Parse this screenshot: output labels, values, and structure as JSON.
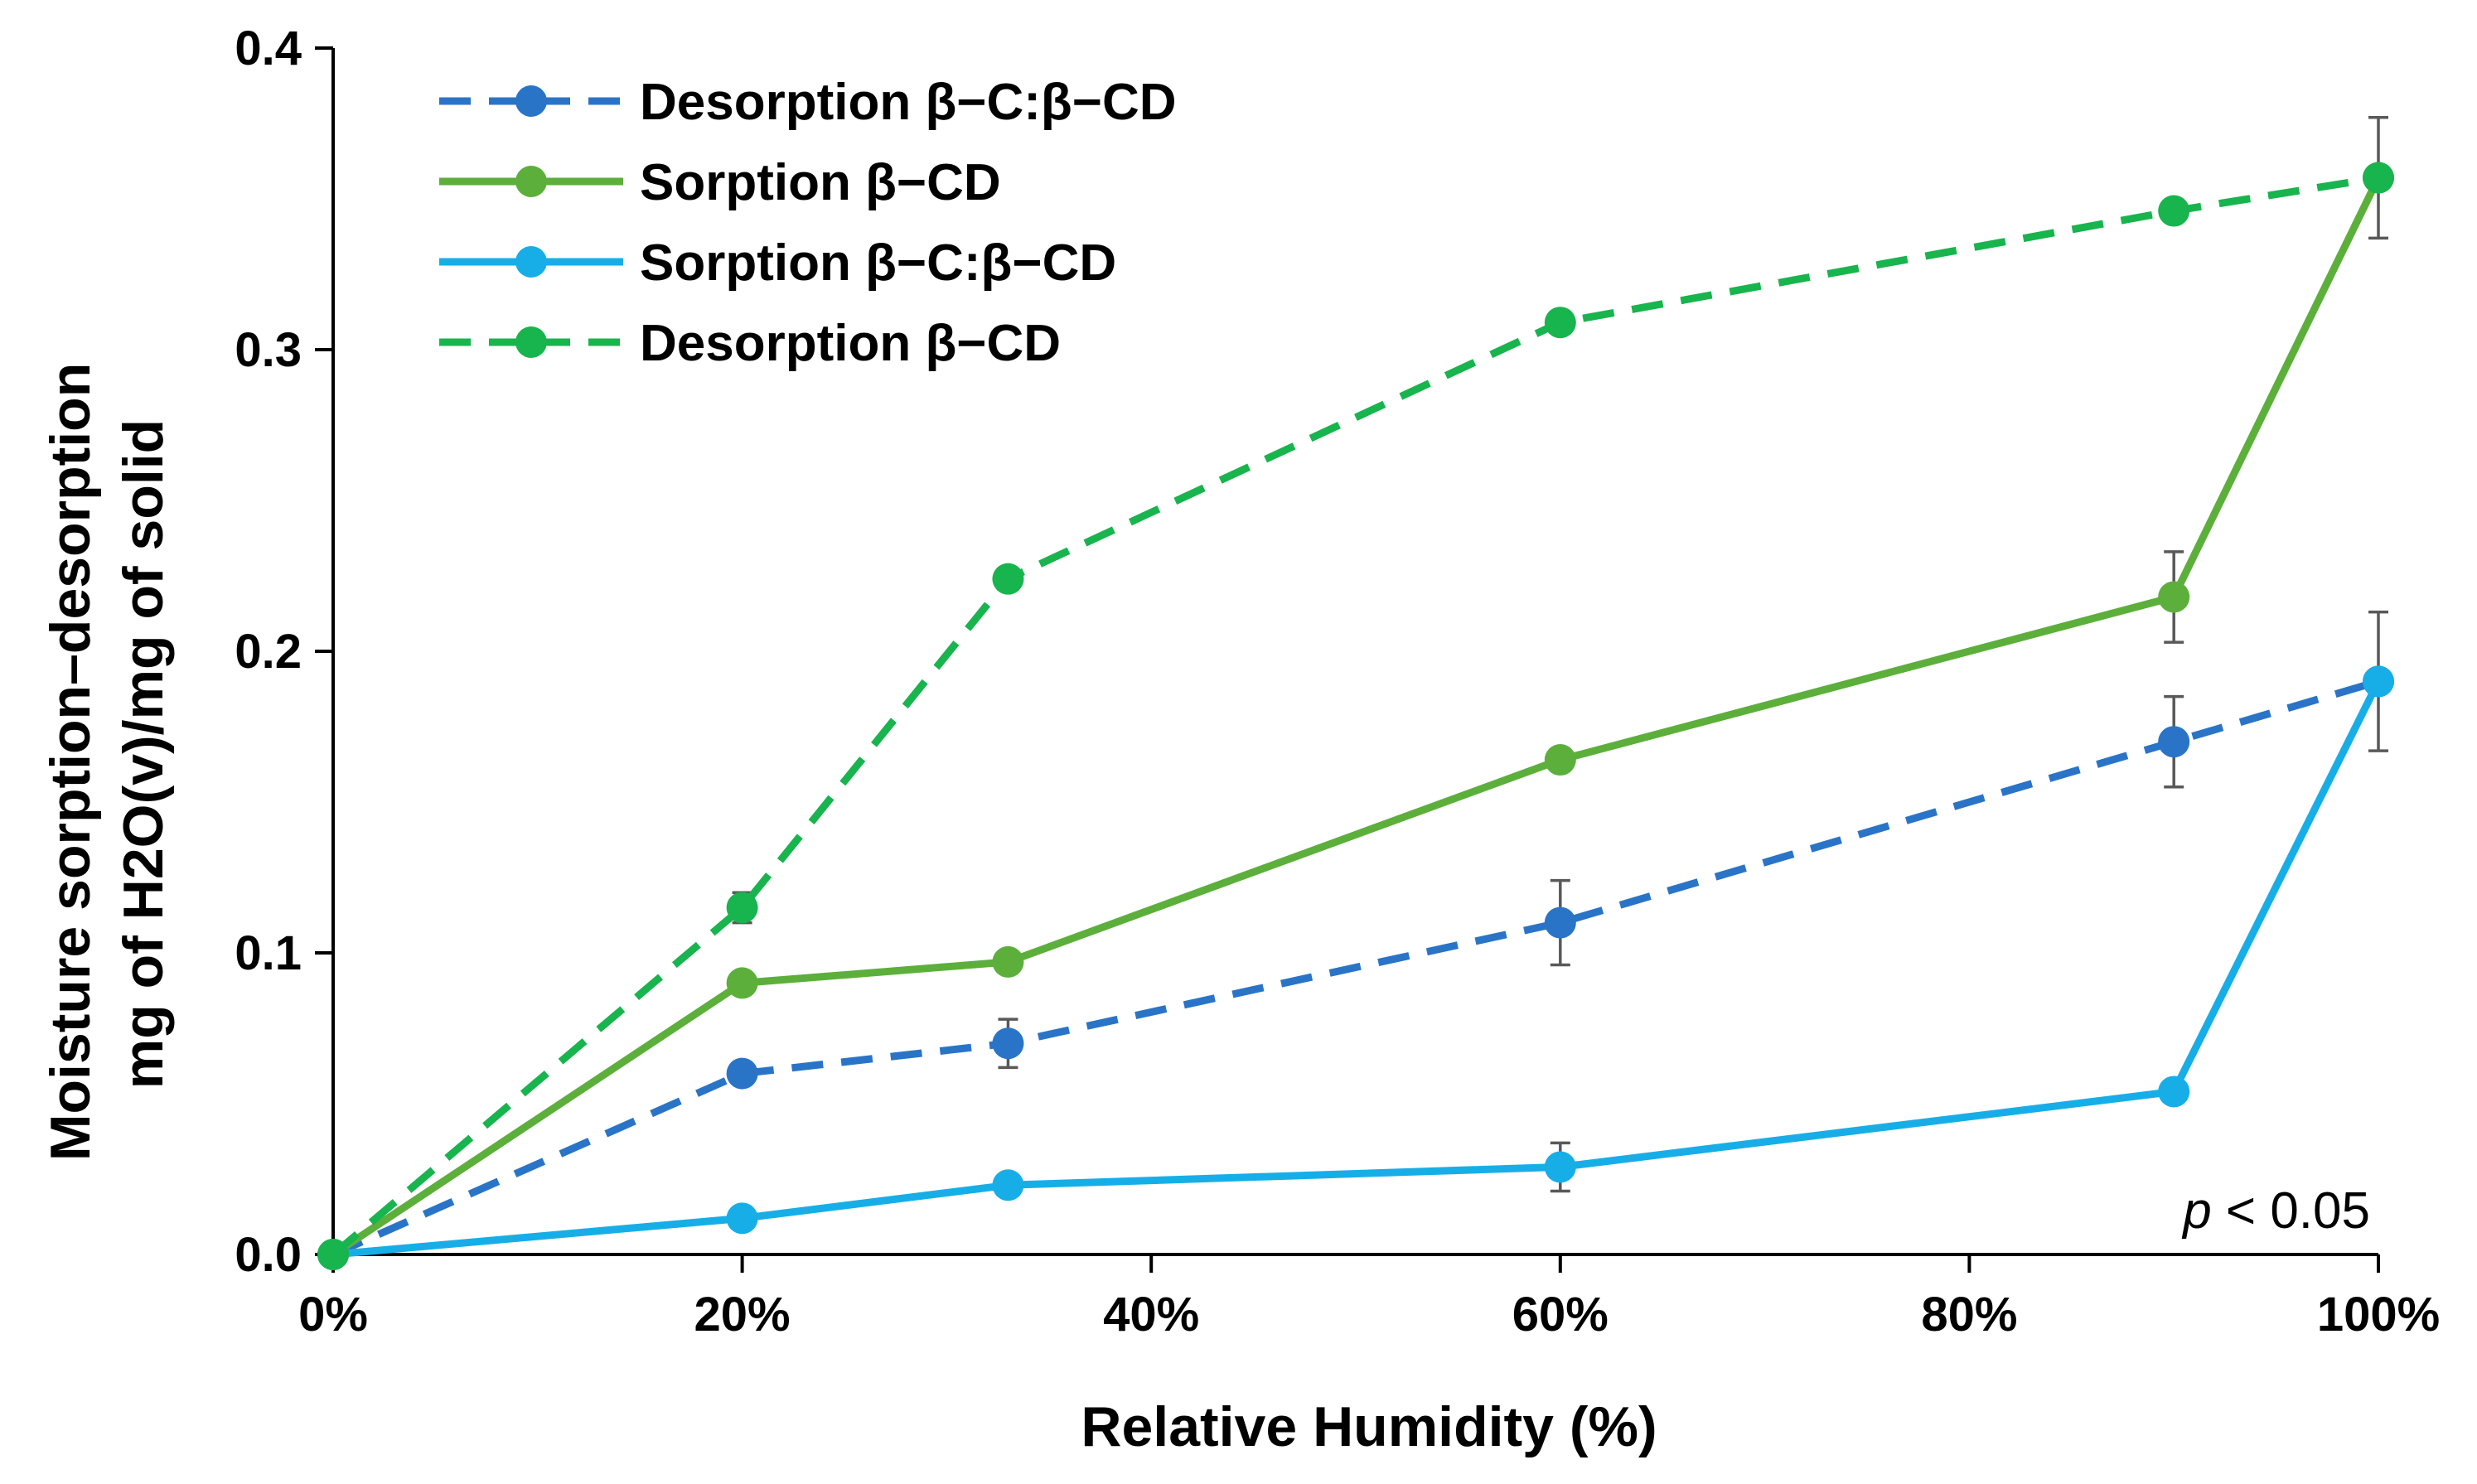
{
  "chart_data": {
    "type": "line",
    "title": "",
    "xlabel": "Relative Humidity (%)",
    "ylabel_lines": [
      "Moisture sorption–desorption",
      "mg of H2O(v)/mg of solid"
    ],
    "xlim": [
      0,
      100
    ],
    "ylim": [
      0,
      0.4
    ],
    "x_ticks": [
      0,
      20,
      40,
      60,
      80,
      100
    ],
    "x_tick_labels": [
      "0%",
      "20%",
      "40%",
      "60%",
      "80%",
      "100%"
    ],
    "y_ticks": [
      0,
      0.1,
      0.2,
      0.3,
      0.4
    ],
    "y_tick_labels": [
      "0.0",
      "0.1",
      "0.2",
      "0.3",
      "0.4"
    ],
    "grid": false,
    "legend_position": "top-left",
    "annotation": {
      "italic": "p",
      "rest": " < 0.05"
    },
    "series": [
      {
        "name": "Desorption β−C:β−CD",
        "color": "#2a74c7",
        "style": "dashed",
        "x": [
          0,
          20,
          33,
          60,
          90,
          100
        ],
        "y": [
          0.0,
          0.06,
          0.07,
          0.11,
          0.17,
          0.19
        ],
        "err": [
          0,
          0,
          0.008,
          0.014,
          0.015,
          0
        ]
      },
      {
        "name": "Sorption β−CD",
        "color": "#5caf3b",
        "style": "solid",
        "x": [
          0,
          20,
          33,
          60,
          90,
          100
        ],
        "y": [
          0.0,
          0.09,
          0.097,
          0.164,
          0.218,
          0.357
        ],
        "err": [
          0,
          0,
          0,
          0,
          0.015,
          0.02
        ]
      },
      {
        "name": "Sorption β−C:β−CD",
        "color": "#17aee8",
        "style": "solid",
        "x": [
          0,
          20,
          33,
          60,
          90,
          100
        ],
        "y": [
          0.0,
          0.012,
          0.023,
          0.029,
          0.054,
          0.19
        ],
        "err": [
          0,
          0,
          0,
          0.008,
          0,
          0.023
        ]
      },
      {
        "name": "Desorption β−CD",
        "color": "#18b44d",
        "style": "dashed",
        "x": [
          0,
          20,
          33,
          60,
          90,
          100
        ],
        "y": [
          0.0,
          0.115,
          0.224,
          0.309,
          0.346,
          0.357
        ],
        "err": [
          0,
          0.005,
          0,
          0,
          0,
          0
        ]
      }
    ]
  }
}
